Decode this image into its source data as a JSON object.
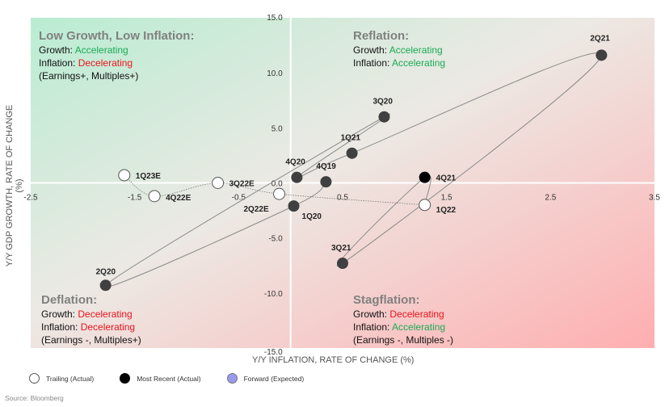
{
  "chart_data": {
    "type": "scatter",
    "xlabel": "Y/Y INFLATION, RATE OF CHANGE (%)",
    "ylabel": "Y/Y GDP GROWTH, RATE OF CHANGE (%)",
    "xlim": [
      -2.5,
      3.5
    ],
    "ylim": [
      -15,
      15
    ],
    "xticks": [
      "-2.5",
      "-1.5",
      "-0.5",
      "0.5",
      "1.5",
      "2.5",
      "3.5"
    ],
    "xtick_values": [
      -2.5,
      -1.5,
      -0.5,
      0.5,
      1.5,
      2.5,
      3.5
    ],
    "yticks": [
      "15.0",
      "10.0",
      "5.0",
      "0.0",
      "-5.0",
      "-10.0",
      "-15.0"
    ],
    "ytick_values": [
      15,
      10,
      5,
      0,
      -5,
      -10,
      -15
    ],
    "points": [
      {
        "label": "4Q19",
        "x": 0.34,
        "y": 0.1,
        "style": "actual"
      },
      {
        "label": "1Q20",
        "x": 0.03,
        "y": -2.1,
        "style": "actual"
      },
      {
        "label": "2Q20",
        "x": -1.78,
        "y": -9.3,
        "style": "actual"
      },
      {
        "label": "3Q20",
        "x": 0.9,
        "y": 6.0,
        "style": "actual"
      },
      {
        "label": "4Q20",
        "x": 0.06,
        "y": 0.5,
        "style": "actual"
      },
      {
        "label": "1Q21",
        "x": 0.59,
        "y": 2.7,
        "style": "actual"
      },
      {
        "label": "2Q21",
        "x": 2.99,
        "y": 11.6,
        "style": "actual"
      },
      {
        "label": "3Q21",
        "x": 0.5,
        "y": -7.3,
        "style": "actual"
      },
      {
        "label": "4Q21",
        "x": 1.29,
        "y": 0.5,
        "style": "recent"
      },
      {
        "label": "1Q22",
        "x": 1.29,
        "y": -2.0,
        "style": "trailing"
      },
      {
        "label": "2Q22E",
        "x": -0.11,
        "y": -1.0,
        "style": "trailing"
      },
      {
        "label": "3Q22E",
        "x": -0.7,
        "y": 0.0,
        "style": "trailing"
      },
      {
        "label": "4Q22E",
        "x": -1.31,
        "y": -1.2,
        "style": "trailing"
      },
      {
        "label": "1Q23E",
        "x": -1.6,
        "y": 0.7,
        "style": "trailing"
      }
    ],
    "legend": [
      {
        "name": "Trailing (Actual)",
        "color": "#ffffff"
      },
      {
        "name": "Most Recent (Actual)",
        "color": "#000000"
      },
      {
        "name": "Forward (Expected)",
        "color": "#9999ee"
      }
    ],
    "legend_placement": "bottom",
    "grid": false
  },
  "quadrants": {
    "top_left": {
      "title": "Low Growth, Low Inflation:",
      "growth_label": "Growth:",
      "growth": "Accelerating",
      "inflation_label": "Inflation:",
      "inflation": "Decelerating",
      "note": "(Earnings+, Multiples+)"
    },
    "top_right": {
      "title": "Reflation:",
      "growth_label": "Growth:",
      "growth": "Accelerating",
      "inflation_label": "Inflation:",
      "inflation": "Accelerating"
    },
    "bottom_left": {
      "title": "Deflation:",
      "growth_label": "Growth:",
      "growth": "Decelerating",
      "inflation_label": "Inflation:",
      "inflation": "Decelerating",
      "note": "(Earnings -, Multiples+)"
    },
    "bottom_right": {
      "title": "Stagflation:",
      "growth_label": "Growth:",
      "growth": "Decelerating",
      "inflation_label": "Inflation:",
      "inflation": "Accelerating",
      "note": "(Earnings -, Multiples -)"
    }
  },
  "colors": {
    "accelerating": "#1aaa55",
    "decelerating": "#e8141c",
    "actual": "#404040",
    "recent": "#000000"
  },
  "source": "Source: Bloomberg"
}
